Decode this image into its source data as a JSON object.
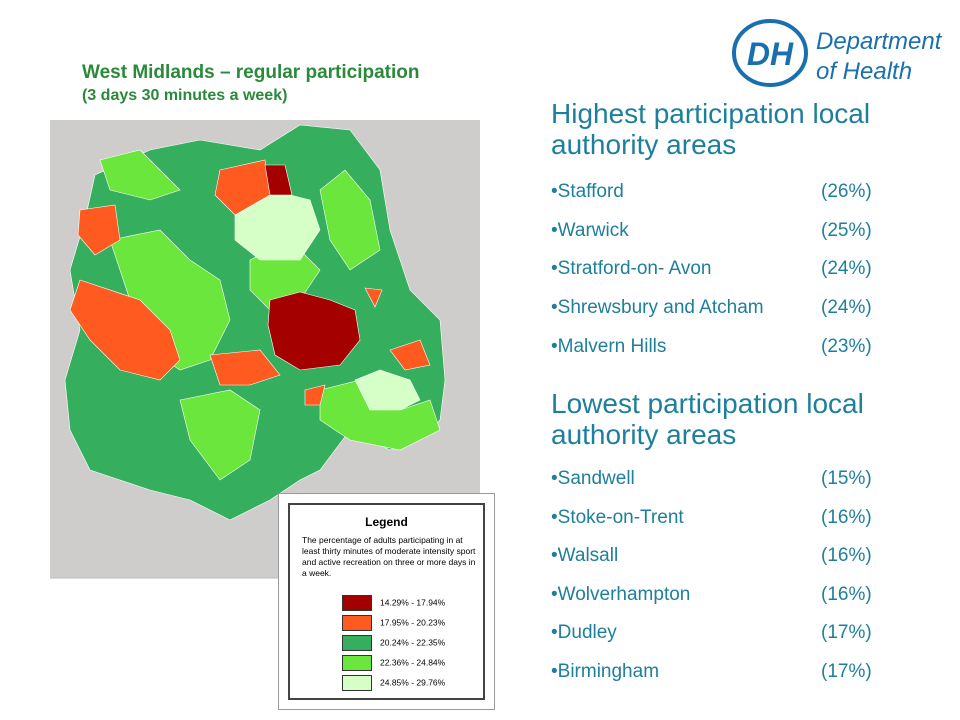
{
  "header": {
    "title": "West Midlands – regular participation",
    "subtitle": "(3 days 30 minutes a week)",
    "logo_mark": "DH",
    "logo_text": [
      "Department",
      "of Health"
    ]
  },
  "legend": {
    "title": "Legend",
    "description": "The percentage of adults participating in at least thirty minutes of moderate intensity sport and active recreation on three or more days in a week.",
    "items": [
      {
        "label": "14.29% - 17.94%",
        "color": "#a50000"
      },
      {
        "label": "17.95% - 20.23%",
        "color": "#ff5a1f"
      },
      {
        "label": "20.24% - 22.35%",
        "color": "#35ae5e"
      },
      {
        "label": "22.36% - 24.84%",
        "color": "#6be63c"
      },
      {
        "label": "24.85% - 29.76%",
        "color": "#d6ffc8"
      }
    ]
  },
  "highest": {
    "heading": "Highest participation local authority areas",
    "items": [
      {
        "name": "•Stafford",
        "value": "(26%)"
      },
      {
        "name": "•Warwick",
        "value": "(25%)"
      },
      {
        "name": "•Stratford-on- Avon",
        "value": "(24%)"
      },
      {
        "name": "•Shrewsbury and Atcham",
        "value": "(24%)"
      },
      {
        "name": "•Malvern Hills",
        "value": "(23%)"
      }
    ]
  },
  "lowest": {
    "heading": "Lowest participation local authority areas",
    "items": [
      {
        "name": "•Sandwell",
        "value": "(15%)"
      },
      {
        "name": "•Stoke-on-Trent",
        "value": "(16%)"
      },
      {
        "name": "•Walsall",
        "value": "(16%)"
      },
      {
        "name": "•Wolverhampton",
        "value": "(16%)"
      },
      {
        "name": "•Dudley",
        "value": "(17%)"
      },
      {
        "name": "•Birmingham",
        "value": "(17%)"
      }
    ]
  }
}
